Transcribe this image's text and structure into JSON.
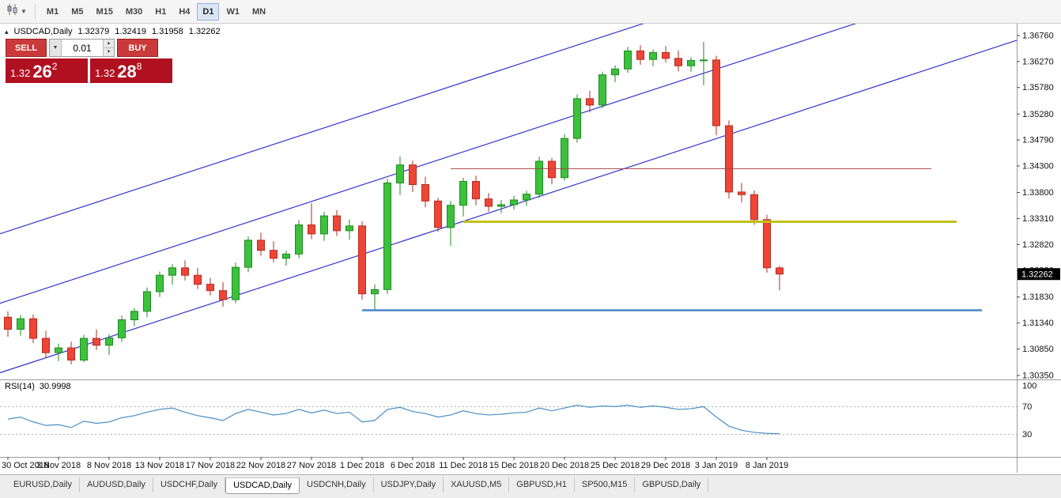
{
  "toolbar": {
    "timeframes": [
      "M1",
      "M5",
      "M15",
      "M30",
      "H1",
      "H4",
      "D1",
      "W1",
      "MN"
    ],
    "active_timeframe": "D1"
  },
  "chart_header": {
    "marker": "▴",
    "symbol": "USDCAD,Daily",
    "open": "1.32379",
    "high": "1.32419",
    "low": "1.31958",
    "close": "1.32262"
  },
  "one_click": {
    "sell_label": "SELL",
    "buy_label": "BUY",
    "volume": "0.01",
    "sell_price": {
      "base": "1.32",
      "big": "26",
      "sup": "2"
    },
    "buy_price": {
      "base": "1.32",
      "big": "28",
      "sup": "8"
    }
  },
  "price_axis": {
    "labels": [
      "1.36760",
      "1.36270",
      "1.35780",
      "1.35280",
      "1.34790",
      "1.34300",
      "1.33800",
      "1.33310",
      "1.32820",
      "1.32330",
      "1.31830",
      "1.31340",
      "1.30850",
      "1.30350"
    ],
    "current_price": "1.32262"
  },
  "date_axis": {
    "labels": [
      "30 Oct 2018",
      "3 Nov 2018",
      "8 Nov 2018",
      "13 Nov 2018",
      "17 Nov 2018",
      "22 Nov 2018",
      "27 Nov 2018",
      "1 Dec 2018",
      "6 Dec 2018",
      "11 Dec 2018",
      "15 Dec 2018",
      "20 Dec 2018",
      "25 Dec 2018",
      "29 Dec 2018",
      "3 Jan 2019",
      "8 Jan 2019"
    ],
    "bars_per_label": 4
  },
  "indicator": {
    "name": "RSI(14)",
    "value": "30.9998",
    "levels": [
      100,
      70,
      30
    ]
  },
  "tabs": {
    "items": [
      "EURUSD,Daily",
      "AUDUSD,Daily",
      "USDCHF,Daily",
      "USDCAD,Daily",
      "USDCNH,Daily",
      "USDJPY,Daily",
      "XAUUSD,M5",
      "GBPUSD,H1",
      "SP500,M15",
      "GBPUSD,Daily"
    ],
    "active": "USDCAD,Daily"
  },
  "colors": {
    "bull": "#3cc13c",
    "bull_border": "#1f8a1f",
    "bear": "#ef4537",
    "bear_border": "#b22d22",
    "channel_line": "#3434cf",
    "resistance_line": "#a94442",
    "support_line_yellow": "#bfc117",
    "support_line_blue": "#4a86c8",
    "rsi_line": "#4a8fc7",
    "price_badge_bg": "#000000",
    "price_badge_text": "#ffffff"
  },
  "chart_data": {
    "type": "candlestick",
    "symbol": "USDCAD",
    "timeframe": "Daily",
    "price_range": [
      1.3035,
      1.3676
    ],
    "rsi_range": [
      0,
      100
    ],
    "candles_ohlc": [
      [
        1.3145,
        1.3156,
        1.3108,
        1.3122
      ],
      [
        1.3122,
        1.3149,
        1.311,
        1.3142
      ],
      [
        1.3142,
        1.315,
        1.3096,
        1.3105
      ],
      [
        1.3105,
        1.3119,
        1.3068,
        1.3078
      ],
      [
        1.3078,
        1.3095,
        1.3062,
        1.3087
      ],
      [
        1.3087,
        1.3099,
        1.3056,
        1.3064
      ],
      [
        1.3064,
        1.3112,
        1.306,
        1.3105
      ],
      [
        1.3105,
        1.3122,
        1.3083,
        1.3092
      ],
      [
        1.3092,
        1.3113,
        1.3074,
        1.3106
      ],
      [
        1.3106,
        1.3148,
        1.3098,
        1.314
      ],
      [
        1.314,
        1.3162,
        1.3128,
        1.3156
      ],
      [
        1.3156,
        1.3201,
        1.3145,
        1.3193
      ],
      [
        1.3193,
        1.3231,
        1.3183,
        1.3224
      ],
      [
        1.3224,
        1.3245,
        1.3206,
        1.3238
      ],
      [
        1.3238,
        1.3252,
        1.3214,
        1.3224
      ],
      [
        1.3224,
        1.3238,
        1.3198,
        1.3207
      ],
      [
        1.3207,
        1.3219,
        1.3186,
        1.3195
      ],
      [
        1.3195,
        1.3211,
        1.3165,
        1.3178
      ],
      [
        1.3178,
        1.3248,
        1.3171,
        1.3239
      ],
      [
        1.3239,
        1.3297,
        1.323,
        1.329
      ],
      [
        1.329,
        1.3304,
        1.3261,
        1.3271
      ],
      [
        1.3271,
        1.3288,
        1.3248,
        1.3256
      ],
      [
        1.3256,
        1.327,
        1.3242,
        1.3264
      ],
      [
        1.3264,
        1.3328,
        1.3256,
        1.3319
      ],
      [
        1.3319,
        1.336,
        1.3292,
        1.3302
      ],
      [
        1.3302,
        1.3344,
        1.3289,
        1.3336
      ],
      [
        1.3336,
        1.3347,
        1.3298,
        1.3308
      ],
      [
        1.3308,
        1.3329,
        1.3291,
        1.3317
      ],
      [
        1.3317,
        1.3326,
        1.3178,
        1.3189
      ],
      [
        1.3189,
        1.3207,
        1.3158,
        1.3197
      ],
      [
        1.3197,
        1.3406,
        1.3189,
        1.3398
      ],
      [
        1.3398,
        1.3448,
        1.3375,
        1.3432
      ],
      [
        1.3432,
        1.344,
        1.3381,
        1.3395
      ],
      [
        1.3395,
        1.341,
        1.3352,
        1.3364
      ],
      [
        1.3364,
        1.337,
        1.3306,
        1.3314
      ],
      [
        1.3314,
        1.3364,
        1.3279,
        1.3356
      ],
      [
        1.3356,
        1.3408,
        1.3335,
        1.3401
      ],
      [
        1.3401,
        1.3412,
        1.3356,
        1.3368
      ],
      [
        1.3368,
        1.3379,
        1.3344,
        1.3354
      ],
      [
        1.3354,
        1.3366,
        1.3341,
        1.3357
      ],
      [
        1.3357,
        1.3374,
        1.3348,
        1.3366
      ],
      [
        1.3366,
        1.3383,
        1.3355,
        1.3377
      ],
      [
        1.3377,
        1.3448,
        1.337,
        1.3439
      ],
      [
        1.3439,
        1.3445,
        1.3396,
        1.3408
      ],
      [
        1.3408,
        1.349,
        1.3402,
        1.3482
      ],
      [
        1.3482,
        1.3565,
        1.3474,
        1.3557
      ],
      [
        1.3557,
        1.3572,
        1.3531,
        1.3545
      ],
      [
        1.3545,
        1.3608,
        1.3539,
        1.3602
      ],
      [
        1.3602,
        1.362,
        1.3588,
        1.3613
      ],
      [
        1.3613,
        1.3655,
        1.3606,
        1.3647
      ],
      [
        1.3647,
        1.3658,
        1.3621,
        1.3631
      ],
      [
        1.3631,
        1.365,
        1.3618,
        1.3644
      ],
      [
        1.3644,
        1.3656,
        1.3625,
        1.3633
      ],
      [
        1.3633,
        1.3648,
        1.3609,
        1.3619
      ],
      [
        1.3619,
        1.3635,
        1.3608,
        1.3629
      ],
      [
        1.3629,
        1.3664,
        1.3582,
        1.363
      ],
      [
        1.363,
        1.3638,
        1.3488,
        1.3506
      ],
      [
        1.3506,
        1.3516,
        1.3369,
        1.3381
      ],
      [
        1.3381,
        1.3398,
        1.3361,
        1.3376
      ],
      [
        1.3376,
        1.3384,
        1.3319,
        1.3329
      ],
      [
        1.3329,
        1.3338,
        1.3229,
        1.3238
      ],
      [
        1.32379,
        1.32419,
        1.31958,
        1.32262
      ]
    ],
    "rsi_values": [
      52,
      55,
      48,
      43,
      44,
      40,
      49,
      46,
      48,
      54,
      57,
      62,
      66,
      68,
      62,
      57,
      54,
      50,
      60,
      66,
      62,
      58,
      60,
      66,
      61,
      65,
      60,
      62,
      48,
      50,
      66,
      69,
      63,
      60,
      55,
      58,
      64,
      60,
      58,
      59,
      61,
      62,
      68,
      64,
      68,
      72,
      69,
      71,
      70,
      72,
      69,
      71,
      69,
      66,
      67,
      70,
      55,
      42,
      36,
      33,
      31.5,
      31
    ],
    "trend_channel": {
      "base_price": 1.3045,
      "slope_per_bar": 0.00078,
      "offsets": [
        0,
        0.0131,
        0.0262
      ]
    },
    "horizontal_lines": [
      {
        "price": 1.3425,
        "from_bar": 35,
        "to_bar": 73,
        "color": "#a94442",
        "width": 1
      },
      {
        "price": 1.3325,
        "from_bar": 36,
        "to_bar": 75,
        "color": "#bfc117",
        "width": 3
      },
      {
        "price": 1.3158,
        "from_bar": 28,
        "to_bar": 77,
        "color": "#4a86c8",
        "width": 2.5
      }
    ]
  }
}
